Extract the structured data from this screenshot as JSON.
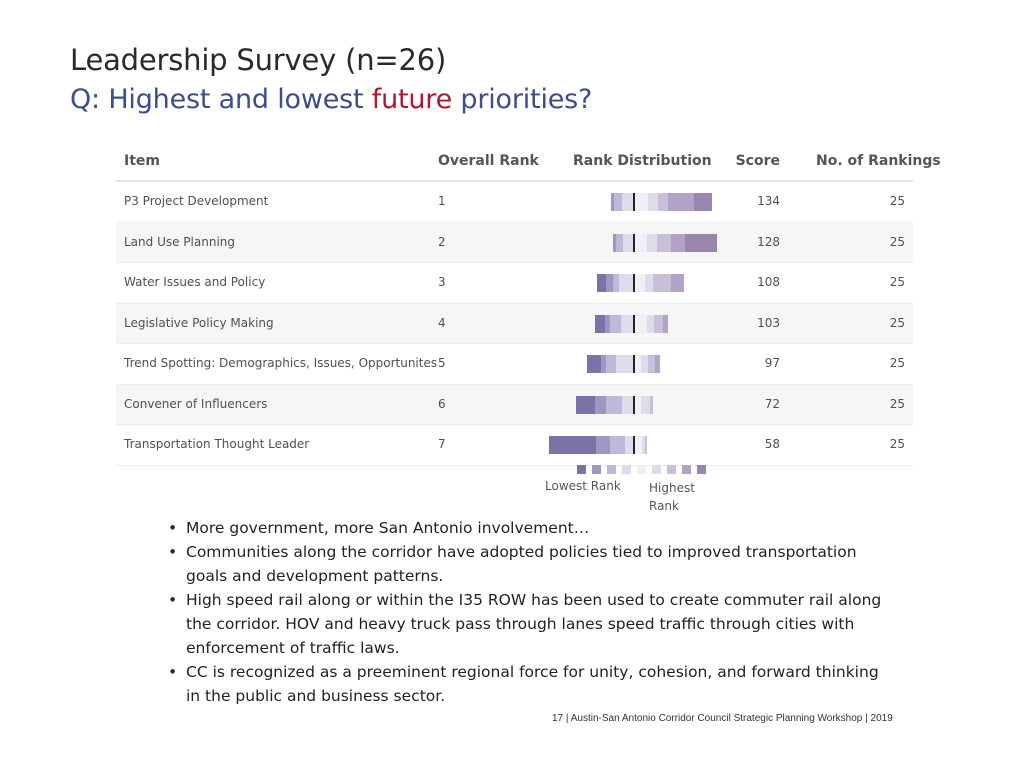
{
  "slide": {
    "title": "Leadership Survey (n=26)",
    "subtitle_prefix": "Q: Highest and lowest ",
    "subtitle_accent": "future",
    "subtitle_suffix": " priorities?"
  },
  "table": {
    "headers": {
      "item": "Item",
      "overall_rank": "Overall Rank",
      "rank_distribution": "Rank Distribution",
      "score": "Score",
      "no_of_rankings": "No. of Rankings"
    },
    "rows": [
      {
        "item": "P3 Project Development",
        "overall_rank": "1",
        "score": "134",
        "count": "25"
      },
      {
        "item": "Land Use Planning",
        "overall_rank": "2",
        "score": "128",
        "count": "25"
      },
      {
        "item": "Water Issues and Policy",
        "overall_rank": "3",
        "score": "108",
        "count": "25"
      },
      {
        "item": "Legislative Policy Making",
        "overall_rank": "4",
        "score": "103",
        "count": "25"
      },
      {
        "item": "Trend Spotting: Demographics, Issues, Opportunites",
        "overall_rank": "5",
        "score": "97",
        "count": "25"
      },
      {
        "item": "Convener of Influencers",
        "overall_rank": "6",
        "score": "72",
        "count": "25"
      },
      {
        "item": "Transportation Thought Leader",
        "overall_rank": "7",
        "score": "58",
        "count": "25"
      }
    ]
  },
  "chart_data": {
    "type": "bar",
    "title": "Rank Distribution",
    "scale_order": [
      "Lowest Rank",
      "",
      "",
      "",
      "",
      "",
      "",
      "",
      "Highest Rank"
    ],
    "colors": [
      "#7d72a8",
      "#9f96c2",
      "#bfb8d8",
      "#dedbeb",
      "#f0eff5",
      "#dedbeb",
      "#c9bfd9",
      "#b1a2c6",
      "#9b84ae"
    ],
    "series": [
      {
        "segments": [
          0,
          0.015,
          0.04,
          0.06,
          0.07,
          0.05,
          0.05,
          0.13,
          0.09
        ]
      },
      {
        "segments": [
          0,
          0.015,
          0.035,
          0.055,
          0.065,
          0.05,
          0.07,
          0.07,
          0.16
        ]
      },
      {
        "segments": [
          0.045,
          0.035,
          0.03,
          0.075,
          0.055,
          0.04,
          0.09,
          0.065,
          0.0
        ]
      },
      {
        "segments": [
          0.05,
          0.025,
          0.055,
          0.065,
          0.065,
          0.035,
          0.045,
          0.025,
          0.0
        ]
      },
      {
        "segments": [
          0.07,
          0.025,
          0.05,
          0.09,
          0.035,
          0.035,
          0.035,
          0.025,
          0.0
        ]
      },
      {
        "segments": [
          0.095,
          0.055,
          0.08,
          0.06,
          0.035,
          0.045,
          0.015,
          0.0,
          0.0
        ]
      },
      {
        "segments": [
          0.235,
          0.07,
          0.075,
          0.045,
          0.04,
          0.015,
          0.01,
          0.0,
          0.0
        ]
      }
    ]
  },
  "legend": {
    "low_label": "Lowest Rank",
    "high_label": "Highest Rank"
  },
  "bullets": [
    "More government, more San Antonio involvement…",
    "Communities along the corridor have adopted policies tied to improved transportation goals and development patterns.",
    "High speed rail along or within the I35 ROW has been used to create commuter rail along the corridor. HOV and heavy truck pass through lanes speed traffic through cities with enforcement of traffic laws.",
    "CC is recognized as a preeminent regional force for unity, cohesion, and forward thinking in the public and business sector."
  ],
  "footer": "17   |   Austin-San Antonio Corridor Council Strategic Planning Workshop   |   2019"
}
